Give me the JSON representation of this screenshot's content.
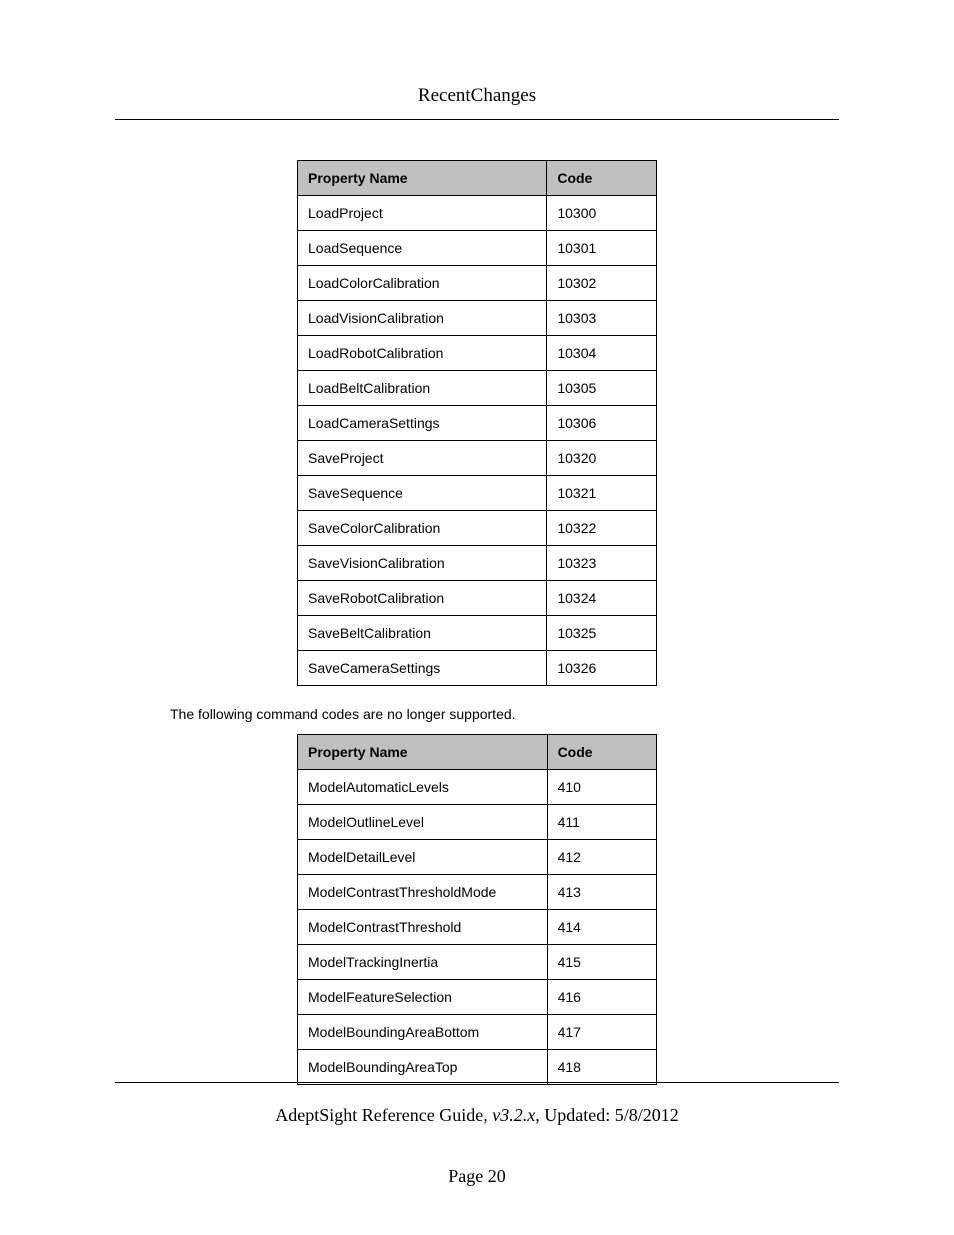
{
  "header": {
    "title": "RecentChanges"
  },
  "table1": {
    "columns": [
      "Property Name",
      "Code"
    ],
    "rows": [
      [
        "LoadProject",
        "10300"
      ],
      [
        "LoadSequence",
        "10301"
      ],
      [
        "LoadColorCalibration",
        "10302"
      ],
      [
        "LoadVisionCalibration",
        "10303"
      ],
      [
        "LoadRobotCalibration",
        "10304"
      ],
      [
        "LoadBeltCalibration",
        "10305"
      ],
      [
        "LoadCameraSettings",
        "10306"
      ],
      [
        "SaveProject",
        "10320"
      ],
      [
        "SaveSequence",
        "10321"
      ],
      [
        "SaveColorCalibration",
        "10322"
      ],
      [
        "SaveVisionCalibration",
        "10323"
      ],
      [
        "SaveRobotCalibration",
        "10324"
      ],
      [
        "SaveBeltCalibration",
        "10325"
      ],
      [
        "SaveCameraSettings",
        "10326"
      ]
    ],
    "header_bg": "#c0c0c0",
    "border_color": "#000000",
    "fontsize": 14
  },
  "between_text": "The following command codes are no longer supported.",
  "table2": {
    "columns": [
      "Property Name",
      "Code"
    ],
    "rows": [
      [
        "ModelAutomaticLevels",
        "410"
      ],
      [
        "ModelOutlineLevel",
        "411"
      ],
      [
        "ModelDetailLevel",
        "412"
      ],
      [
        "ModelContrastThresholdMode",
        "413"
      ],
      [
        "ModelContrastThreshold",
        "414"
      ],
      [
        "ModelTrackingInertia",
        "415"
      ],
      [
        "ModelFeatureSelection",
        "416"
      ],
      [
        "ModelBoundingAreaBottom",
        "417"
      ],
      [
        "ModelBoundingAreaTop",
        "418"
      ]
    ],
    "header_bg": "#c0c0c0",
    "border_color": "#000000",
    "fontsize": 14
  },
  "footer": {
    "guide": "AdeptSight Reference Guide",
    "version": ", v3.2.x",
    "updated": ", Updated: 5/8/2012",
    "page": "Page 20"
  }
}
